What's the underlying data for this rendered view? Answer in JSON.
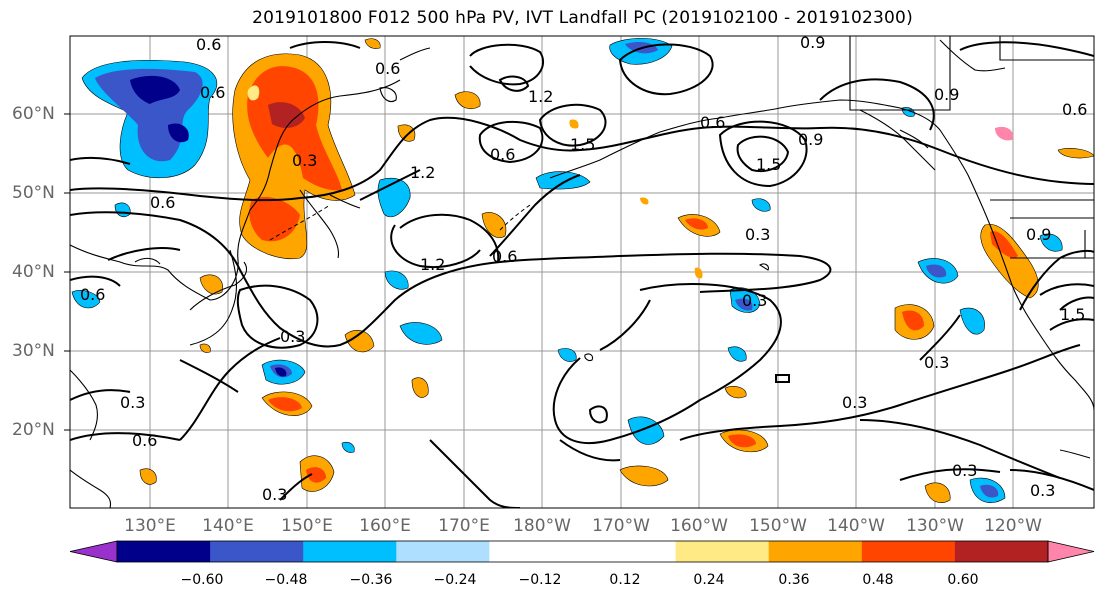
{
  "title": "2019101800 F012 500 hPa PV, IVT Landfall PC (2019102100 - 2019102300)",
  "lat_labels": [
    "60°N",
    "50°N",
    "40°N",
    "30°N",
    "20°N"
  ],
  "lon_labels": [
    "130°E",
    "140°E",
    "150°E",
    "160°E",
    "170°E",
    "180°W",
    "170°W",
    "160°W",
    "150°W",
    "140°W",
    "130°W",
    "120°W"
  ],
  "colorbar": {
    "colors": [
      "#9932cc",
      "#00008b",
      "#3a56c9",
      "#00bfff",
      "#afdfff",
      "#ffffff",
      "#ffffff",
      "#ffea85",
      "#ffa500",
      "#ff4500",
      "#b22222",
      "#ff85aa"
    ],
    "ticks": [
      "−0.60",
      "−0.48",
      "−0.36",
      "−0.24",
      "−0.12",
      "0.12",
      "0.24",
      "0.36",
      "0.48",
      "0.60"
    ]
  },
  "contour_labels": [
    "0.6",
    "0.6",
    "0.3",
    "1.2",
    "0.6",
    "0.6",
    "1.2",
    "0.6",
    "1.5",
    "0.9",
    "0.6",
    "1.5",
    "0.9",
    "0.3",
    "0.9",
    "0.6",
    "1.2",
    "0.6",
    "0.3",
    "0.3",
    "0.3",
    "0.6",
    "0.3",
    "0.3",
    "0.3",
    "0.3",
    "0.3",
    "0.9",
    "1.5",
    "0.6"
  ]
}
